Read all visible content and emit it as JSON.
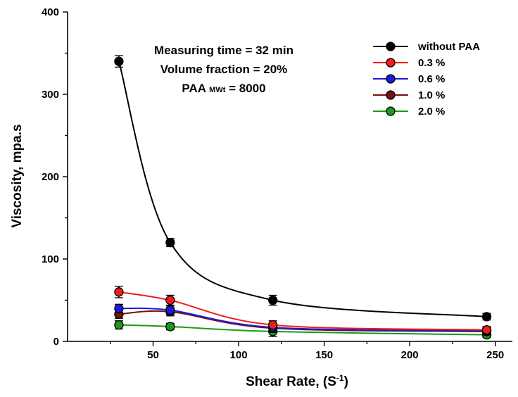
{
  "chart_data": {
    "type": "line",
    "xlabel_main": "Shear Rate, (S",
    "xlabel_sup": "-1",
    "xlabel_end": ")",
    "ylabel": "Viscosity, mpa.s",
    "xlim": [
      0,
      260
    ],
    "ylim": [
      0,
      400
    ],
    "x_ticks": [
      50,
      100,
      150,
      200,
      250
    ],
    "x_minor_ticks": [
      25,
      75,
      125,
      175,
      225
    ],
    "y_ticks": [
      0,
      100,
      200,
      300,
      400
    ],
    "y_minor_ticks": [
      50,
      150,
      250,
      350
    ],
    "annotations": [
      {
        "text": "Measuring time = 32 min"
      },
      {
        "text": "Volume fraction = 20%"
      },
      {
        "text": "PAA ",
        "sub": "MWt",
        "tail": " = 8000"
      }
    ],
    "legend_position": "top-right",
    "x": [
      30,
      60,
      120,
      245
    ],
    "series": [
      {
        "name": "without PAA",
        "color": "#000000",
        "values": [
          340,
          120,
          50,
          30
        ],
        "err": [
          7,
          5,
          6,
          4
        ]
      },
      {
        "name": "0.3 %",
        "color": "#ee1c1c",
        "values": [
          60,
          50,
          20,
          14
        ],
        "err": [
          7,
          6,
          5,
          4
        ]
      },
      {
        "name": "0.6 %",
        "color": "#1a1adc",
        "values": [
          40,
          38,
          17,
          13
        ],
        "err": [
          5,
          5,
          5,
          4
        ]
      },
      {
        "name": "1.0 %",
        "color": "#7a0f0f",
        "values": [
          33,
          36,
          16,
          12
        ],
        "err": [
          5,
          5,
          5,
          4
        ]
      },
      {
        "name": "2.0 %",
        "color": "#1a9a1a",
        "values": [
          20,
          18,
          12,
          8
        ],
        "err": [
          5,
          4,
          6,
          3
        ]
      }
    ]
  }
}
